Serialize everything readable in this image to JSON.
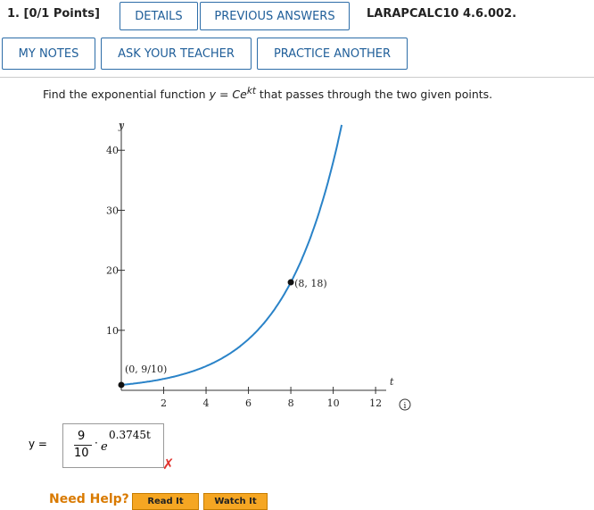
{
  "header": {
    "question_number": "1. [0/1 Points]",
    "details": "DETAILS",
    "previous_answers": "PREVIOUS ANSWERS",
    "problem_id": "LARAPCALC10 4.6.002.",
    "my_notes": "MY NOTES",
    "ask_teacher": "ASK YOUR TEACHER",
    "practice_another": "PRACTICE ANOTHER"
  },
  "question": {
    "before": "Find the exponential function ",
    "formula_y": "y",
    "formula_eq": " = ",
    "formula_c": "Ce",
    "formula_exp": "kt",
    "after": " that passes through the two given points."
  },
  "graph": {
    "x_label": "t",
    "y_label": "y",
    "xlim": [
      0,
      12.5
    ],
    "ylim": [
      0,
      44.5
    ],
    "xticks": [
      2,
      4,
      6,
      8,
      10,
      12
    ],
    "yticks": [
      10,
      20,
      30,
      40
    ],
    "color": "#2a83c8",
    "points": [
      {
        "x": 0,
        "y": 0.9,
        "label": "(0, 9/10)"
      },
      {
        "x": 8,
        "y": 18,
        "label": "(8, 18)"
      }
    ]
  },
  "answer": {
    "prefix": "y =",
    "numerator": "9",
    "denominator": "10",
    "dot": "·",
    "base": "e",
    "exponent": "0.3745t"
  },
  "help": {
    "label": "Need Help?",
    "read_it": "Read It",
    "watch_it": "Watch It"
  }
}
